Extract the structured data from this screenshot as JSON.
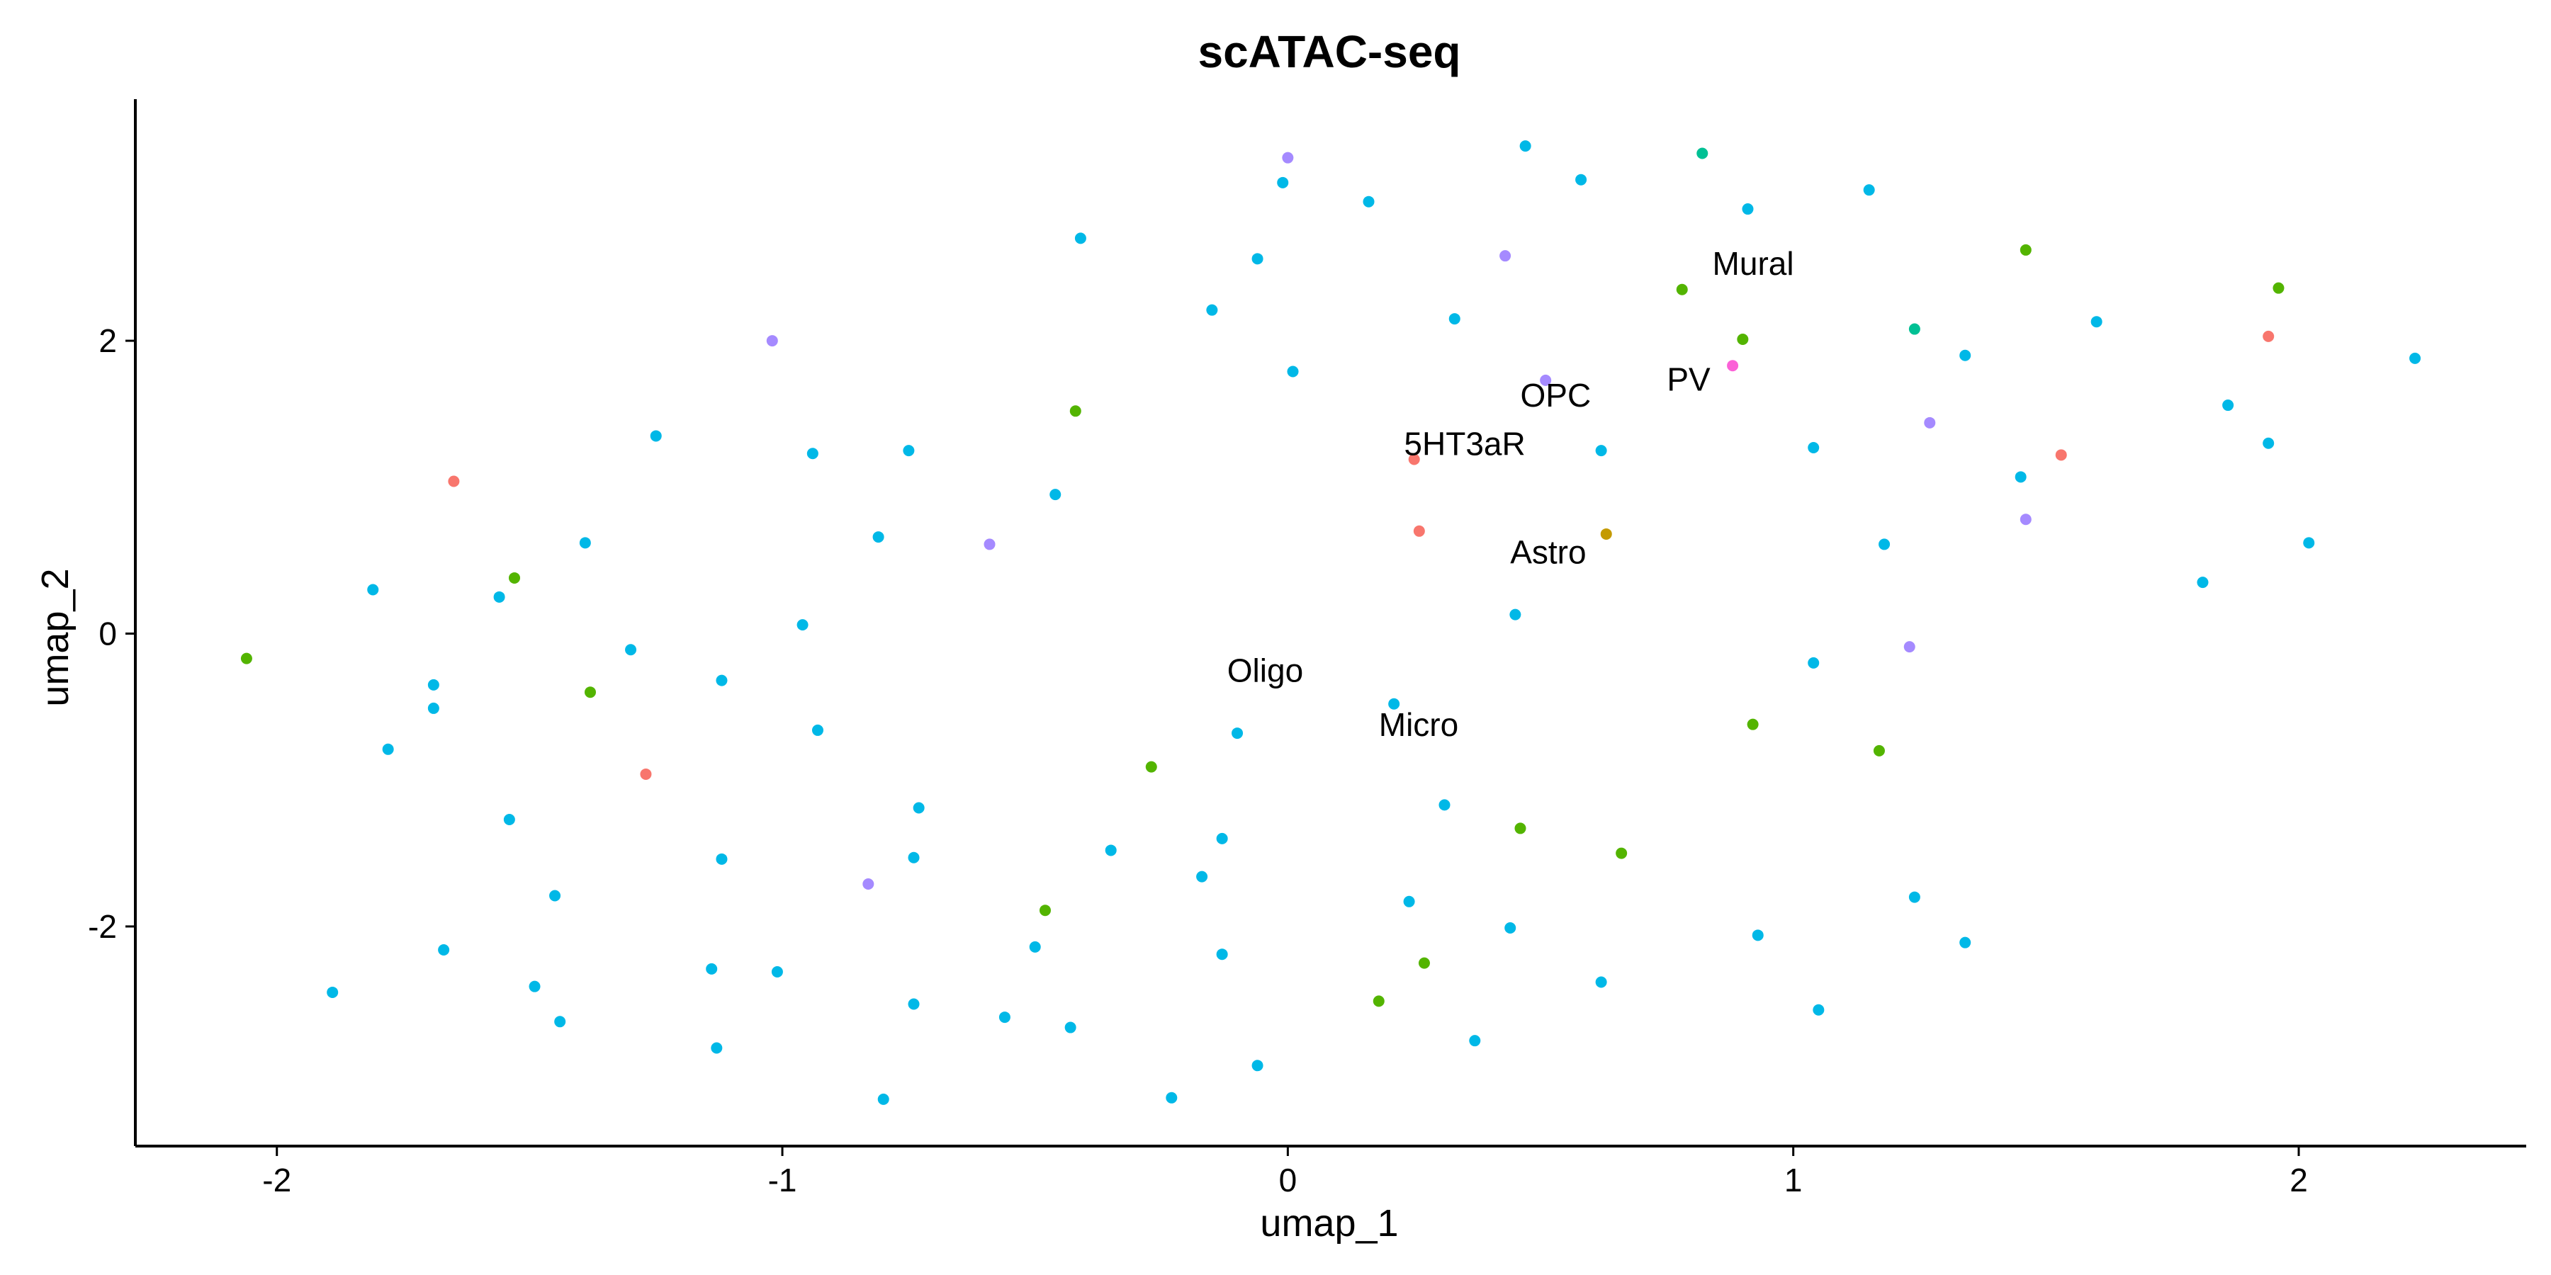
{
  "chart_data": {
    "type": "scatter",
    "title": "scATAC-seq",
    "xlabel": "umap_1",
    "ylabel": "umap_2",
    "xlim": [
      -2.28,
      2.45
    ],
    "ylim": [
      -3.5,
      3.65
    ],
    "xticks": [
      -2,
      -1,
      0,
      1,
      2
    ],
    "yticks": [
      -2,
      0,
      2
    ],
    "grid": false,
    "legend": "none",
    "series": [
      {
        "color": "#00B8E7",
        "points": [
          [
            0.47,
            3.33
          ],
          [
            0.58,
            3.1
          ],
          [
            -0.01,
            3.08
          ],
          [
            0.16,
            2.95
          ],
          [
            0.91,
            2.9
          ],
          [
            1.15,
            3.03
          ],
          [
            -0.41,
            2.7
          ],
          [
            -0.06,
            2.56
          ],
          [
            -0.15,
            2.21
          ],
          [
            0.33,
            2.15
          ],
          [
            0.01,
            1.79
          ],
          [
            1.6,
            2.13
          ],
          [
            1.34,
            1.9
          ],
          [
            2.23,
            1.88
          ],
          [
            1.86,
            1.56
          ],
          [
            1.94,
            1.3
          ],
          [
            1.04,
            1.27
          ],
          [
            0.62,
            1.25
          ],
          [
            1.45,
            1.07
          ],
          [
            1.18,
            0.61
          ],
          [
            2.02,
            0.62
          ],
          [
            1.81,
            0.35
          ],
          [
            0.45,
            0.13
          ],
          [
            1.04,
            -0.2
          ],
          [
            -1.25,
            1.35
          ],
          [
            -0.94,
            1.23
          ],
          [
            -0.75,
            1.25
          ],
          [
            -0.46,
            0.95
          ],
          [
            -0.81,
            0.66
          ],
          [
            -1.39,
            0.62
          ],
          [
            -1.81,
            0.3
          ],
          [
            -1.56,
            0.25
          ],
          [
            -0.96,
            0.06
          ],
          [
            -1.3,
            -0.11
          ],
          [
            -1.12,
            -0.32
          ],
          [
            -1.69,
            -0.35
          ],
          [
            -1.69,
            -0.51
          ],
          [
            -1.78,
            -0.79
          ],
          [
            -0.93,
            -0.66
          ],
          [
            -0.1,
            -0.68
          ],
          [
            0.21,
            -0.48
          ],
          [
            -1.54,
            -1.27
          ],
          [
            -0.73,
            -1.19
          ],
          [
            -0.35,
            -1.48
          ],
          [
            -0.13,
            -1.4
          ],
          [
            -0.74,
            -1.53
          ],
          [
            -1.12,
            -1.54
          ],
          [
            -0.17,
            -1.66
          ],
          [
            0.31,
            -1.17
          ],
          [
            0.24,
            -1.83
          ],
          [
            1.24,
            -1.8
          ],
          [
            -1.45,
            -1.79
          ],
          [
            0.44,
            -2.01
          ],
          [
            0.93,
            -2.06
          ],
          [
            1.34,
            -2.11
          ],
          [
            -0.5,
            -2.14
          ],
          [
            -0.13,
            -2.19
          ],
          [
            -1.67,
            -2.16
          ],
          [
            -1.14,
            -2.29
          ],
          [
            -1.01,
            -2.31
          ],
          [
            -1.89,
            -2.45
          ],
          [
            -1.49,
            -2.41
          ],
          [
            -0.74,
            -2.53
          ],
          [
            -0.56,
            -2.62
          ],
          [
            -0.43,
            -2.69
          ],
          [
            -1.44,
            -2.65
          ],
          [
            0.62,
            -2.38
          ],
          [
            1.05,
            -2.57
          ],
          [
            0.37,
            -2.78
          ],
          [
            -1.13,
            -2.83
          ],
          [
            -0.06,
            -2.95
          ],
          [
            -0.8,
            -3.18
          ],
          [
            -0.23,
            -3.17
          ]
        ]
      },
      {
        "color": "#53B400",
        "points": [
          [
            0.78,
            2.35
          ],
          [
            0.9,
            2.01
          ],
          [
            1.46,
            2.62
          ],
          [
            1.96,
            2.36
          ],
          [
            -0.42,
            1.52
          ],
          [
            -1.53,
            0.38
          ],
          [
            -2.06,
            -0.17
          ],
          [
            -1.38,
            -0.4
          ],
          [
            0.92,
            -0.62
          ],
          [
            1.17,
            -0.8
          ],
          [
            -0.27,
            -0.91
          ],
          [
            0.46,
            -1.33
          ],
          [
            0.66,
            -1.5
          ],
          [
            -0.48,
            -1.89
          ],
          [
            0.27,
            -2.25
          ],
          [
            0.18,
            -2.51
          ]
        ]
      },
      {
        "color": "#00C094",
        "points": [
          [
            0.82,
            3.28
          ],
          [
            1.24,
            2.08
          ]
        ]
      },
      {
        "color": "#A58AFF",
        "points": [
          [
            0.0,
            3.25
          ],
          [
            0.43,
            2.58
          ],
          [
            -1.02,
            2.0
          ],
          [
            0.51,
            1.73
          ],
          [
            1.27,
            1.44
          ],
          [
            -0.59,
            0.61
          ],
          [
            1.46,
            0.78
          ],
          [
            1.23,
            -0.09
          ],
          [
            -0.83,
            -1.71
          ]
        ]
      },
      {
        "color": "#F8766D",
        "points": [
          [
            -1.65,
            1.04
          ],
          [
            0.25,
            1.19
          ],
          [
            0.26,
            0.7
          ],
          [
            1.53,
            1.22
          ],
          [
            1.94,
            2.03
          ],
          [
            -1.27,
            -0.96
          ]
        ]
      },
      {
        "color": "#FB61D7",
        "points": [
          [
            0.88,
            1.83
          ]
        ]
      },
      {
        "color": "#C49A00",
        "points": [
          [
            0.63,
            0.68
          ]
        ]
      }
    ],
    "annotations": [
      {
        "text": "Mural",
        "x": 0.84,
        "y": 2.45
      },
      {
        "text": "PV",
        "x": 0.75,
        "y": 1.66
      },
      {
        "text": "OPC",
        "x": 0.46,
        "y": 1.55
      },
      {
        "text": "5HT3aR",
        "x": 0.23,
        "y": 1.22
      },
      {
        "text": "Astro",
        "x": 0.44,
        "y": 0.48
      },
      {
        "text": "Oligo",
        "x": -0.12,
        "y": -0.33
      },
      {
        "text": "Micro",
        "x": 0.18,
        "y": -0.7
      }
    ]
  }
}
